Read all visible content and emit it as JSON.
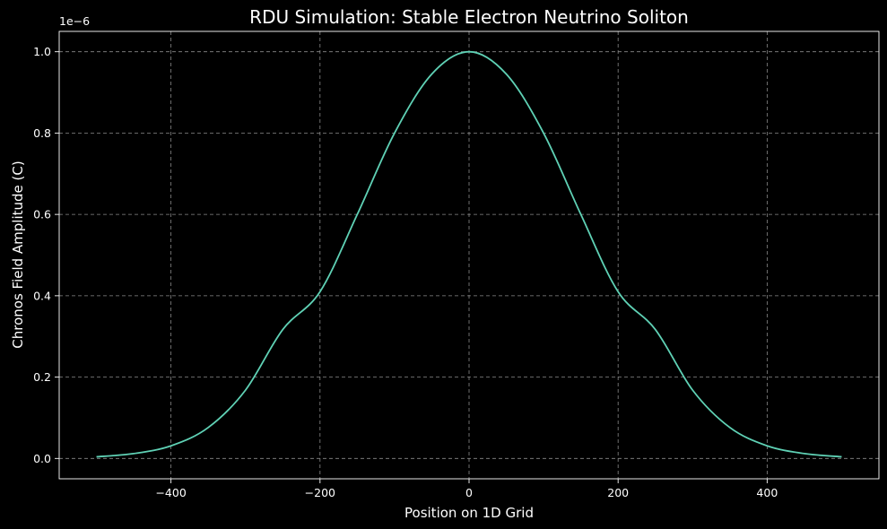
{
  "chart_data": {
    "type": "line",
    "title": "RDU Simulation: Stable Electron Neutrino Soliton",
    "xlabel": "Position on 1D Grid",
    "ylabel": "Chronos Field Amplitude (C)",
    "y_offset_label": "1e−6",
    "xlim": [
      -550,
      550
    ],
    "ylim": [
      -0.05,
      1.05
    ],
    "x_ticks": [
      -400,
      -200,
      0,
      200,
      400
    ],
    "x_tick_labels": [
      "−400",
      "−200",
      "0",
      "200",
      "400"
    ],
    "y_ticks": [
      0.0,
      0.2,
      0.4,
      0.6,
      0.8,
      1.0
    ],
    "y_tick_labels": [
      "0.0",
      "0.2",
      "0.4",
      "0.6",
      "0.8",
      "1.0"
    ],
    "grid": true,
    "series": [
      {
        "color": "#5fd1b5",
        "x": [
          -500,
          -450,
          -400,
          -350,
          -300,
          -250,
          -200,
          -150,
          -100,
          -50,
          0,
          50,
          100,
          150,
          200,
          250,
          300,
          350,
          400,
          450,
          500
        ],
        "y": [
          0.004,
          0.012,
          0.031,
          0.076,
          0.168,
          0.317,
          0.41,
          0.6,
          0.8,
          0.945,
          1.0,
          0.945,
          0.8,
          0.6,
          0.41,
          0.317,
          0.168,
          0.076,
          0.031,
          0.012,
          0.004
        ]
      }
    ]
  },
  "colors": {
    "background": "#000000",
    "axes": "#ffffff",
    "grid": "#8a8a8a",
    "line": "#5fd1b5"
  }
}
